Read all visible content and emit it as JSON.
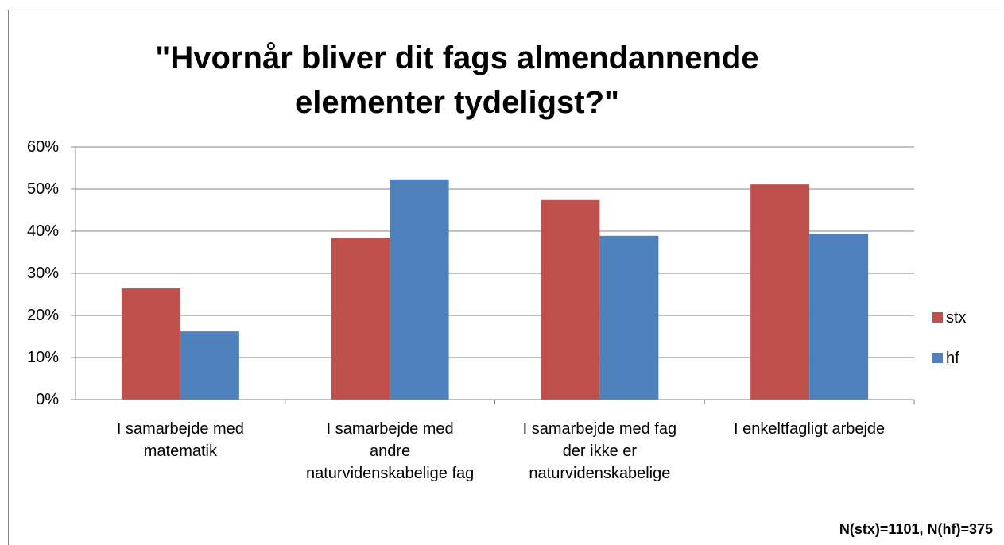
{
  "chart_data": {
    "type": "bar",
    "title": "\"Hvornår bliver dit fags almendannende\nelementer tydeligst?\"",
    "categories": [
      "I samarbejde med\nmatematik",
      "I samarbejde med\nandre\nnaturvidenskabelige fag",
      "I samarbejde med fag\nder ikke er\nnaturvidenskabelige",
      "I enkeltfagligt arbejde"
    ],
    "series": [
      {
        "name": "stx",
        "color": "#c0504d",
        "values": [
          26.4,
          38.3,
          47.4,
          51.1
        ]
      },
      {
        "name": "hf",
        "color": "#4f81bd",
        "values": [
          16.2,
          52.3,
          38.9,
          39.4
        ]
      }
    ],
    "ylim": [
      0,
      60
    ],
    "yticks": [
      {
        "value": 0,
        "label": "0%"
      },
      {
        "value": 10,
        "label": "10%"
      },
      {
        "value": 20,
        "label": "20%"
      },
      {
        "value": 30,
        "label": "30%"
      },
      {
        "value": 40,
        "label": "40%"
      },
      {
        "value": 50,
        "label": "50%"
      },
      {
        "value": 60,
        "label": "60%"
      }
    ],
    "grid": true,
    "legend": "right",
    "annotation": "N(stx)=1101, N(hf)=375"
  }
}
